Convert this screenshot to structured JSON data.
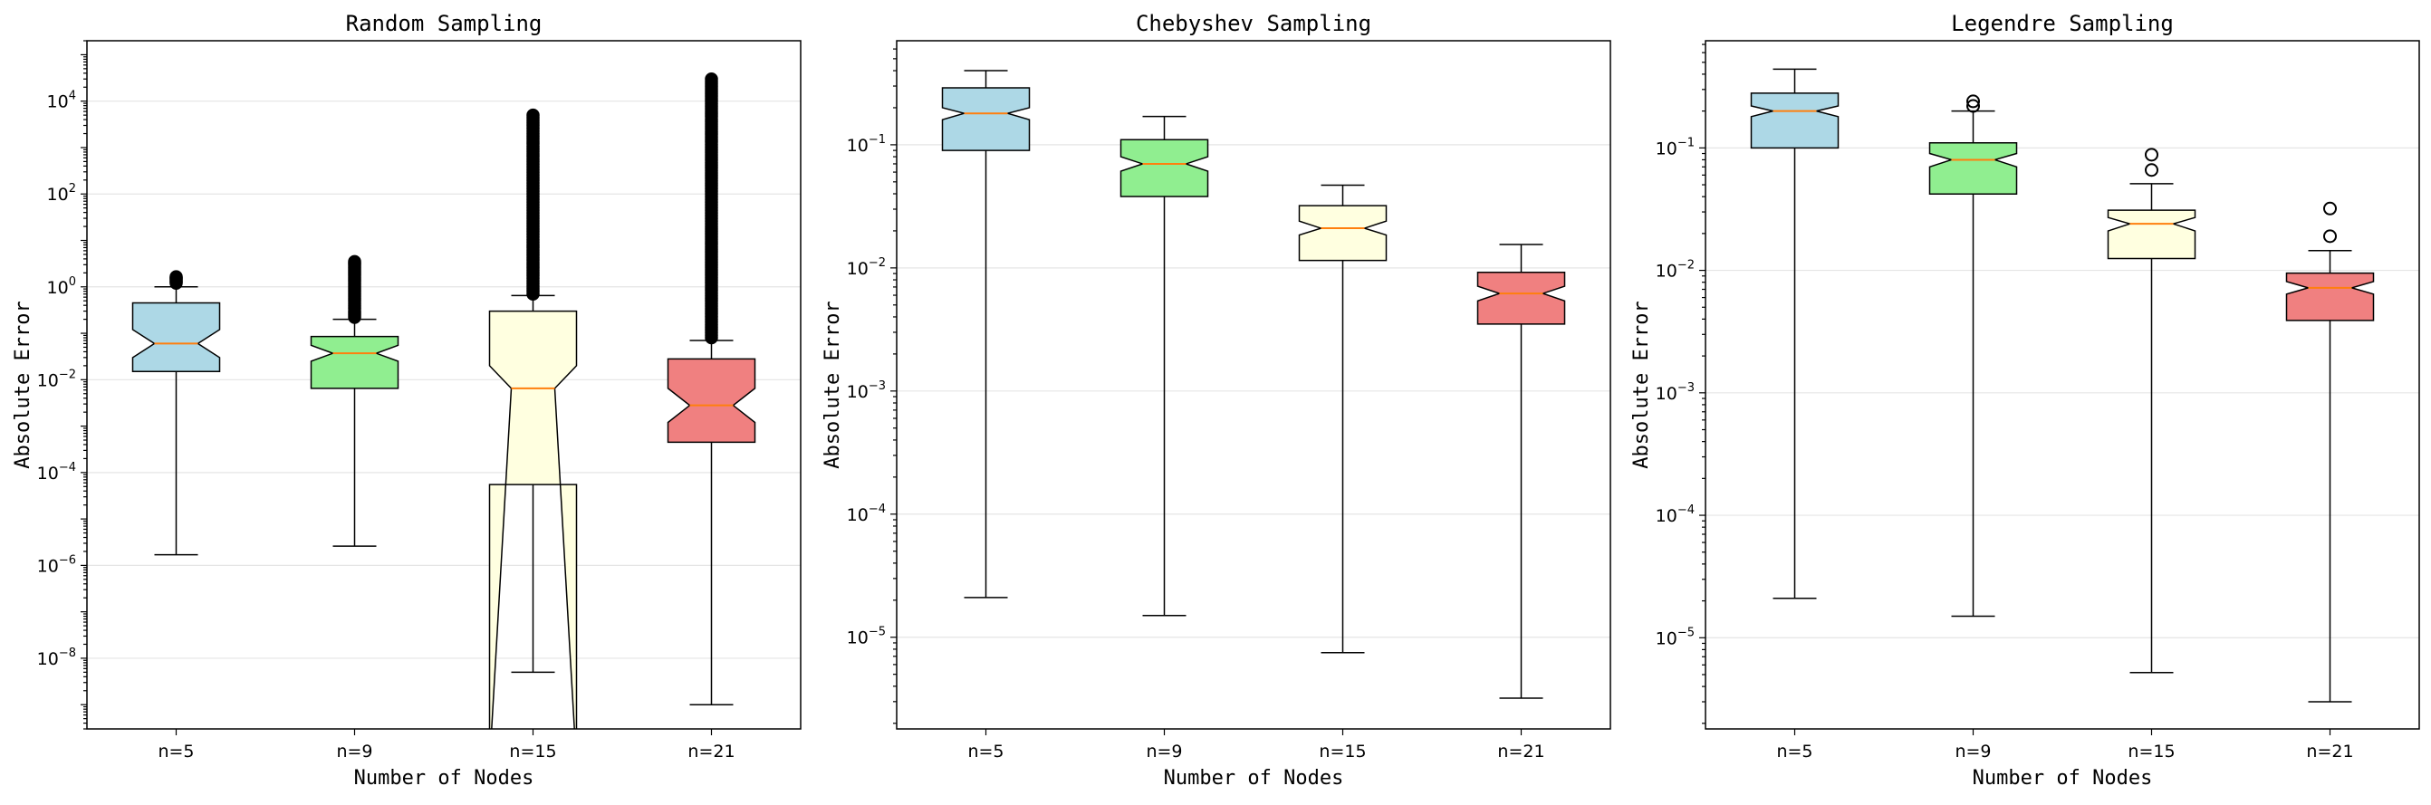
{
  "colors": {
    "box_fills": [
      "#add8e6",
      "#90ee90",
      "#ffffe0",
      "#f08080"
    ],
    "median": "#ff7f0e",
    "grid": "#e5e5e5"
  },
  "chart_data": [
    {
      "type": "box",
      "title": "Random Sampling",
      "xlabel": "Number of Nodes",
      "ylabel": "Absolute Error",
      "yscale": "log",
      "ylim": [
        3e-10,
        200000.0
      ],
      "ytick_exponents": [
        -8,
        -6,
        -4,
        -2,
        0,
        2,
        4
      ],
      "grid": "y",
      "notch": true,
      "categories": [
        "n=5",
        "n=9",
        "n=15",
        "n=21"
      ],
      "boxes": [
        {
          "whislo": 1.7e-06,
          "q1": 0.015,
          "median": 0.06,
          "q3": 0.45,
          "whishi": 1.0,
          "notch_lo": 0.03,
          "notch_hi": 0.12,
          "fliers": [
            1.2,
            1.35,
            1.5,
            1.65
          ]
        },
        {
          "whislo": 2.6e-06,
          "q1": 0.0065,
          "median": 0.037,
          "q3": 0.085,
          "whishi": 0.2,
          "notch_lo": 0.025,
          "notch_hi": 0.055,
          "fliers": [
            0.22,
            0.3,
            0.5,
            0.8,
            1.3,
            2.0,
            3.0,
            3.5
          ]
        },
        {
          "whislo": 5e-09,
          "q1": 5.5e-05,
          "median": 0.0065,
          "q3": 0.3,
          "whishi": 0.65,
          "notch_lo": 5e-11,
          "notch_hi": 0.02,
          "fliers": [
            0.7,
            2,
            8,
            30,
            100,
            500,
            2000,
            5000
          ]
        },
        {
          "whislo": 1e-09,
          "q1": 0.00045,
          "median": 0.0028,
          "q3": 0.028,
          "whishi": 0.07,
          "notch_lo": 0.0012,
          "notch_hi": 0.0065,
          "fliers": [
            0.08,
            0.5,
            3,
            20,
            150,
            1500,
            10000,
            30000
          ]
        }
      ]
    },
    {
      "type": "box",
      "title": "Chebyshev Sampling",
      "xlabel": "Number of Nodes",
      "ylabel": "Absolute Error",
      "yscale": "log",
      "ylim": [
        1.8e-06,
        0.7
      ],
      "ytick_exponents": [
        -5,
        -4,
        -3,
        -2,
        -1
      ],
      "grid": "y",
      "notch": true,
      "categories": [
        "n=5",
        "n=9",
        "n=15",
        "n=21"
      ],
      "boxes": [
        {
          "whislo": 2.1e-05,
          "q1": 0.09,
          "median": 0.18,
          "q3": 0.29,
          "whishi": 0.4,
          "notch_lo": 0.16,
          "notch_hi": 0.2,
          "fliers": []
        },
        {
          "whislo": 1.5e-05,
          "q1": 0.038,
          "median": 0.07,
          "q3": 0.11,
          "whishi": 0.17,
          "notch_lo": 0.061,
          "notch_hi": 0.08,
          "fliers": []
        },
        {
          "whislo": 7.5e-06,
          "q1": 0.0115,
          "median": 0.021,
          "q3": 0.032,
          "whishi": 0.047,
          "notch_lo": 0.0185,
          "notch_hi": 0.024,
          "fliers": []
        },
        {
          "whislo": 3.2e-06,
          "q1": 0.0035,
          "median": 0.0062,
          "q3": 0.0092,
          "whishi": 0.0155,
          "notch_lo": 0.0054,
          "notch_hi": 0.0071,
          "fliers": []
        }
      ]
    },
    {
      "type": "box",
      "title": "Legendre Sampling",
      "xlabel": "Number of Nodes",
      "ylabel": "Absolute Error",
      "yscale": "log",
      "ylim": [
        1.8e-06,
        0.75
      ],
      "ytick_exponents": [
        -5,
        -4,
        -3,
        -2,
        -1
      ],
      "grid": "y",
      "notch": true,
      "categories": [
        "n=5",
        "n=9",
        "n=15",
        "n=21"
      ],
      "boxes": [
        {
          "whislo": 2.1e-05,
          "q1": 0.1,
          "median": 0.2,
          "q3": 0.28,
          "whishi": 0.44,
          "notch_lo": 0.18,
          "notch_hi": 0.22,
          "fliers": []
        },
        {
          "whislo": 1.5e-05,
          "q1": 0.042,
          "median": 0.08,
          "q3": 0.11,
          "whishi": 0.2,
          "notch_lo": 0.07,
          "notch_hi": 0.09,
          "fliers": [
            0.22,
            0.24
          ]
        },
        {
          "whislo": 5.2e-06,
          "q1": 0.0125,
          "median": 0.024,
          "q3": 0.031,
          "whishi": 0.051,
          "notch_lo": 0.021,
          "notch_hi": 0.027,
          "fliers": [
            0.066,
            0.088
          ]
        },
        {
          "whislo": 3e-06,
          "q1": 0.0039,
          "median": 0.0072,
          "q3": 0.0095,
          "whishi": 0.0145,
          "notch_lo": 0.0064,
          "notch_hi": 0.0081,
          "fliers": [
            0.019,
            0.032
          ]
        }
      ]
    }
  ]
}
